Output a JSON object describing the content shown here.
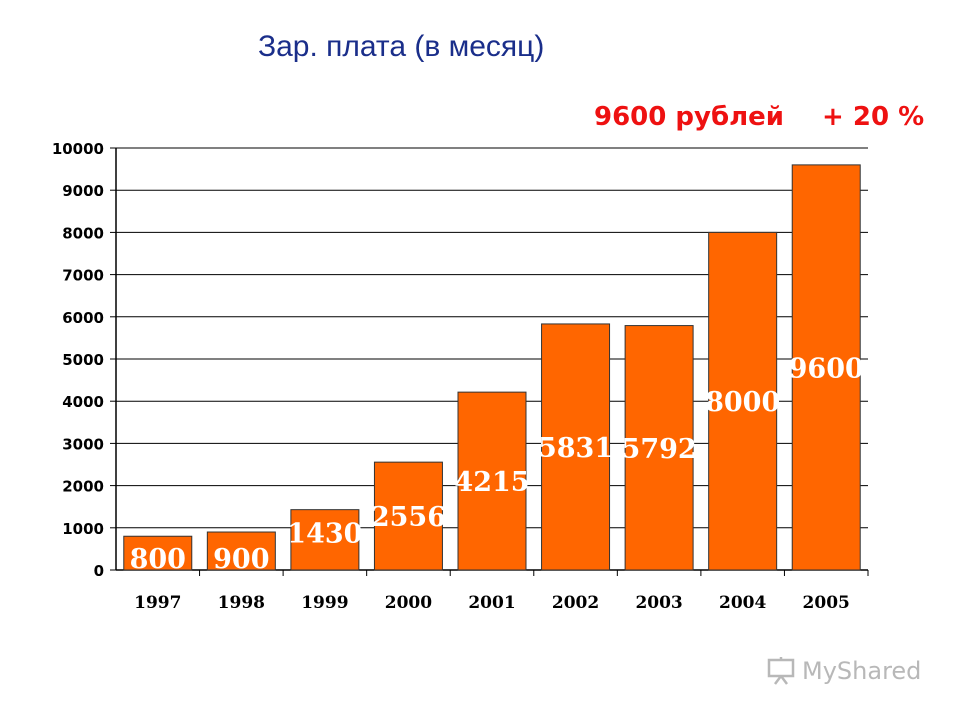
{
  "title": "Зар. плата (в месяц)",
  "highlight": {
    "value": "9600 рублей",
    "change": "+ 20 %"
  },
  "chart_data": {
    "type": "bar",
    "categories": [
      "1997",
      "1998",
      "1999",
      "2000",
      "2001",
      "2002",
      "2003",
      "2004",
      "2005"
    ],
    "values": [
      800,
      900,
      1430,
      2556,
      4215,
      5831,
      5792,
      8000,
      9600
    ],
    "data_labels": [
      "800",
      "900",
      "1430",
      "2556",
      "4215",
      "5831",
      "5792",
      "8000",
      "9600"
    ],
    "ylim": [
      0,
      10000
    ],
    "yticks": [
      0,
      1000,
      2000,
      3000,
      4000,
      5000,
      6000,
      7000,
      8000,
      9000,
      10000
    ],
    "grid": true,
    "legend": "none",
    "bar_color": "#ff6600",
    "bar_edge": "#333333",
    "label_color": "#ffffff"
  },
  "watermark": {
    "text": "MyShared",
    "icon": "presentation-board-icon"
  }
}
